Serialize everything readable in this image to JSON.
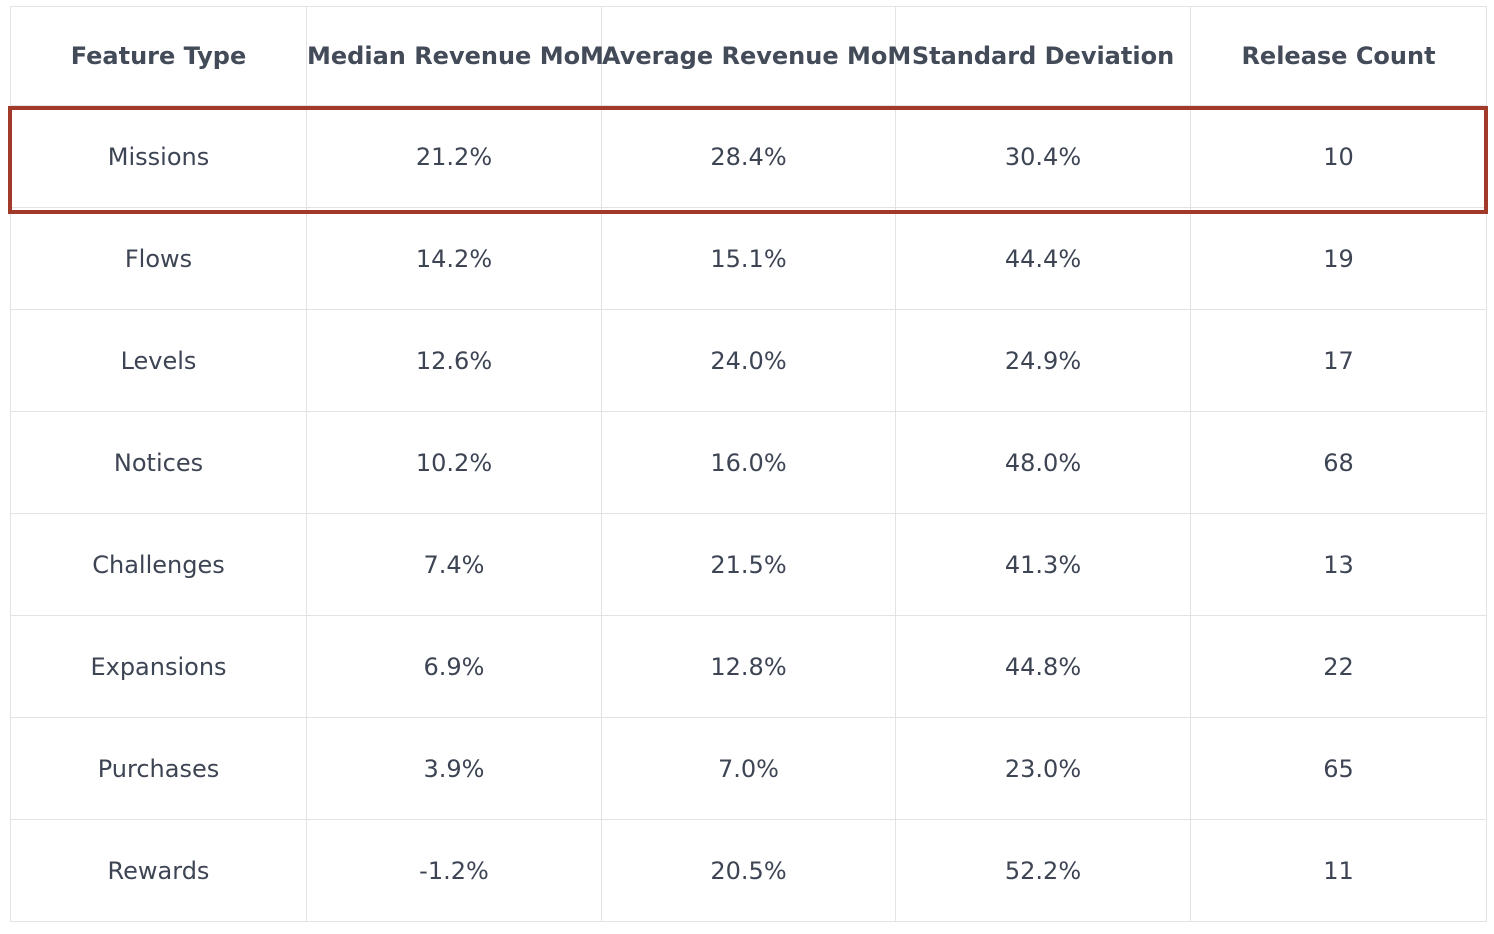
{
  "chart_data": {
    "type": "table",
    "columns": [
      "Feature Type",
      "Median Revenue MoM",
      "Average Revenue MoM",
      "Standard Deviation",
      "Release Count"
    ],
    "rows": [
      [
        "Missions",
        "21.2%",
        "28.4%",
        "30.4%",
        "10"
      ],
      [
        "Flows",
        "14.2%",
        "15.1%",
        "44.4%",
        "19"
      ],
      [
        "Levels",
        "12.6%",
        "24.0%",
        "24.9%",
        "17"
      ],
      [
        "Notices",
        "10.2%",
        "16.0%",
        "48.0%",
        "68"
      ],
      [
        "Challenges",
        "7.4%",
        "21.5%",
        "41.3%",
        "13"
      ],
      [
        "Expansions",
        "6.9%",
        "12.8%",
        "44.8%",
        "22"
      ],
      [
        "Purchases",
        "3.9%",
        "7.0%",
        "23.0%",
        "65"
      ],
      [
        "Rewards",
        "-1.2%",
        "20.5%",
        "52.2%",
        "11"
      ]
    ],
    "highlighted_row": 0,
    "highlight_color": "#a23a2b",
    "grid": true
  }
}
